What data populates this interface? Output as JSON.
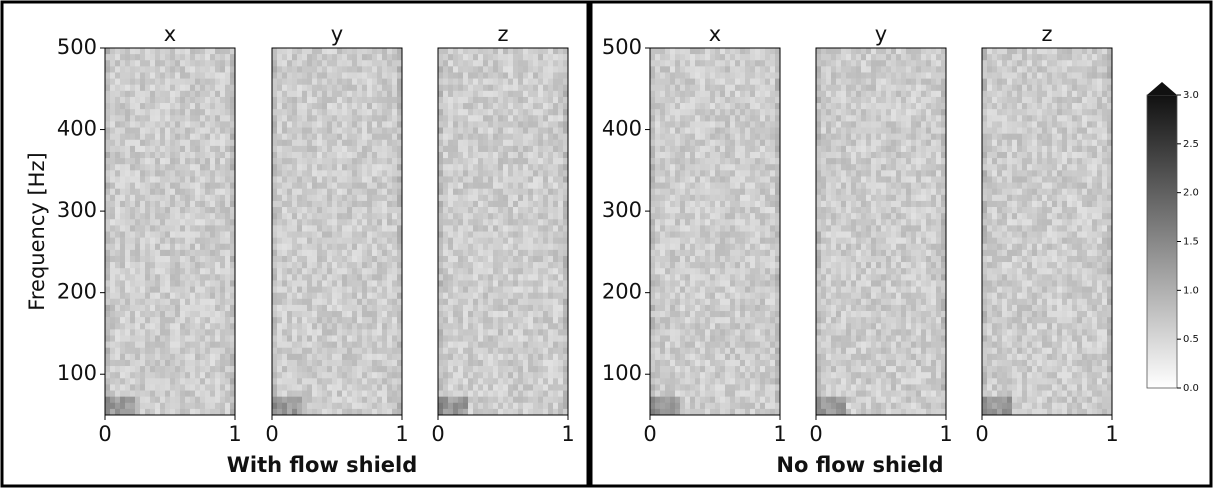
{
  "chart_data": [
    {
      "type": "heatmap",
      "title": "x",
      "ylabel": "Frequency [Hz]",
      "xlim": [
        0,
        1
      ],
      "xticks": [
        0,
        1
      ],
      "ylim": [
        50,
        500
      ],
      "yticks": [
        100,
        200,
        300,
        400,
        500
      ]
    },
    {
      "type": "heatmap",
      "title": "y",
      "xlim": [
        0,
        1
      ],
      "xticks": [
        0,
        1
      ],
      "ylim": [
        50,
        500
      ]
    },
    {
      "type": "heatmap",
      "title": "z",
      "xlim": [
        0,
        1
      ],
      "xticks": [
        0,
        1
      ],
      "ylim": [
        50,
        500
      ]
    },
    {
      "type": "heatmap",
      "title": "x",
      "xlim": [
        0,
        1
      ],
      "xticks": [
        0,
        1
      ],
      "ylim": [
        50,
        500
      ],
      "yticks": [
        100,
        200,
        300,
        400,
        500
      ]
    },
    {
      "type": "heatmap",
      "title": "y",
      "xlim": [
        0,
        1
      ],
      "xticks": [
        0,
        1
      ],
      "ylim": [
        50,
        500
      ]
    },
    {
      "type": "heatmap",
      "title": "z",
      "xlim": [
        0,
        1
      ],
      "xticks": [
        0,
        1
      ],
      "ylim": [
        50,
        500
      ]
    }
  ],
  "panels": [
    {
      "caption": "With flow shield"
    },
    {
      "caption": "No flow shield"
    }
  ],
  "colorbar": {
    "lim": [
      0,
      3
    ],
    "ticks": [
      {
        "value": 0,
        "label": "0.0"
      },
      0.5,
      {
        "value": 1,
        "label": "1.0"
      },
      1.5,
      {
        "value": 2,
        "label": "2.0"
      },
      2.5,
      {
        "value": 3,
        "label": "3.0"
      }
    ]
  }
}
